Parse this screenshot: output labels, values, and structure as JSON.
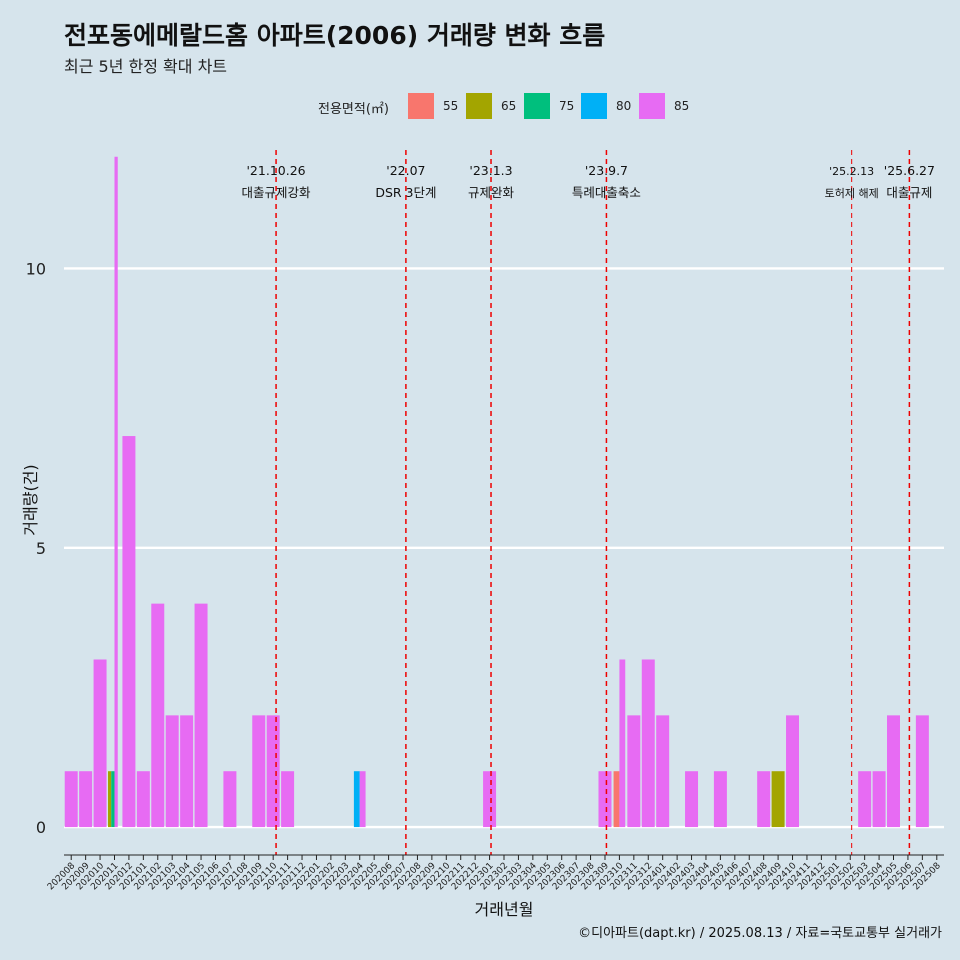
{
  "title": "전포동에메랄드홈 아파트(2006) 거래량 변화 흐름",
  "subtitle": "최근 5년 한정 확대 차트",
  "caption": "©디아파트(dapt.kr) / 2025.08.13 / 자료=국토교통부 실거래가",
  "legend": {
    "title": "전용면적(㎡)",
    "items": [
      {
        "label": "55",
        "color": "#F8766D"
      },
      {
        "label": "65",
        "color": "#A3A500"
      },
      {
        "label": "75",
        "color": "#00BF7D"
      },
      {
        "label": "80",
        "color": "#00B0F6"
      },
      {
        "label": "85",
        "color": "#E76BF3"
      }
    ]
  },
  "chart_data": {
    "type": "bar",
    "stacked": true,
    "xlabel": "거래년월",
    "ylabel": "거래량(건)",
    "ylim": [
      -0.5,
      12.3
    ],
    "yticks": [
      0,
      5,
      10
    ],
    "categories": [
      "202008",
      "202009",
      "202010",
      "202011",
      "202012",
      "202101",
      "202102",
      "202103",
      "202104",
      "202105",
      "202106",
      "202107",
      "202108",
      "202109",
      "202110",
      "202111",
      "202112",
      "202201",
      "202202",
      "202203",
      "202204",
      "202205",
      "202206",
      "202207",
      "202208",
      "202209",
      "202210",
      "202211",
      "202212",
      "202301",
      "202302",
      "202303",
      "202304",
      "202305",
      "202306",
      "202307",
      "202308",
      "202309",
      "202310",
      "202311",
      "202312",
      "202401",
      "202402",
      "202403",
      "202404",
      "202405",
      "202406",
      "202407",
      "202408",
      "202409",
      "202410",
      "202411",
      "202412",
      "202501",
      "202502",
      "202503",
      "202504",
      "202505",
      "202506",
      "202507",
      "202508"
    ],
    "bars": [
      {
        "x": 0,
        "segments": [
          {
            "size": "85",
            "value": 1
          }
        ]
      },
      {
        "x": 1,
        "segments": [
          {
            "size": "85",
            "value": 1
          }
        ]
      },
      {
        "x": 2,
        "segments": [
          {
            "size": "85",
            "value": 3
          }
        ]
      },
      {
        "x": 3,
        "width": 0.25,
        "offset": -0.375,
        "segments": [
          {
            "size": "65",
            "value": 1
          }
        ]
      },
      {
        "x": 3,
        "width": 0.25,
        "offset": -0.125,
        "segments": [
          {
            "size": "75",
            "value": 1
          }
        ]
      },
      {
        "x": 3,
        "width": 0.25,
        "offset": 0.125,
        "segments": [
          {
            "size": "85",
            "value": 12
          }
        ]
      },
      {
        "x": 4,
        "segments": [
          {
            "size": "85",
            "value": 7
          }
        ]
      },
      {
        "x": 5,
        "segments": [
          {
            "size": "85",
            "value": 1
          }
        ]
      },
      {
        "x": 6,
        "segments": [
          {
            "size": "85",
            "value": 4
          }
        ]
      },
      {
        "x": 7,
        "segments": [
          {
            "size": "85",
            "value": 2
          }
        ]
      },
      {
        "x": 8,
        "segments": [
          {
            "size": "85",
            "value": 2
          }
        ]
      },
      {
        "x": 9,
        "segments": [
          {
            "size": "85",
            "value": 4
          }
        ]
      },
      {
        "x": 11,
        "segments": [
          {
            "size": "85",
            "value": 1
          }
        ]
      },
      {
        "x": 13,
        "segments": [
          {
            "size": "85",
            "value": 2
          }
        ]
      },
      {
        "x": 14,
        "segments": [
          {
            "size": "85",
            "value": 2
          }
        ]
      },
      {
        "x": 15,
        "segments": [
          {
            "size": "85",
            "value": 1
          }
        ]
      },
      {
        "x": 20,
        "width": 0.45,
        "offset": -0.225,
        "segments": [
          {
            "size": "80",
            "value": 1
          }
        ]
      },
      {
        "x": 20,
        "width": 0.45,
        "offset": 0.225,
        "segments": [
          {
            "size": "85",
            "value": 1
          }
        ]
      },
      {
        "x": 29,
        "segments": [
          {
            "size": "85",
            "value": 1
          }
        ]
      },
      {
        "x": 37,
        "segments": [
          {
            "size": "85",
            "value": 1
          }
        ]
      },
      {
        "x": 38,
        "width": 0.45,
        "offset": -0.225,
        "segments": [
          {
            "size": "55",
            "value": 1
          }
        ]
      },
      {
        "x": 38,
        "width": 0.45,
        "offset": 0.225,
        "segments": [
          {
            "size": "85",
            "value": 3
          }
        ]
      },
      {
        "x": 39,
        "segments": [
          {
            "size": "85",
            "value": 2
          }
        ]
      },
      {
        "x": 40,
        "segments": [
          {
            "size": "85",
            "value": 3
          }
        ]
      },
      {
        "x": 41,
        "segments": [
          {
            "size": "85",
            "value": 2
          }
        ]
      },
      {
        "x": 43,
        "segments": [
          {
            "size": "85",
            "value": 1
          }
        ]
      },
      {
        "x": 45,
        "segments": [
          {
            "size": "85",
            "value": 1
          }
        ]
      },
      {
        "x": 48,
        "segments": [
          {
            "size": "85",
            "value": 1
          }
        ]
      },
      {
        "x": 49,
        "segments": [
          {
            "size": "65",
            "value": 1
          }
        ]
      },
      {
        "x": 50,
        "segments": [
          {
            "size": "85",
            "value": 2
          }
        ]
      },
      {
        "x": 55,
        "segments": [
          {
            "size": "85",
            "value": 1
          }
        ]
      },
      {
        "x": 56,
        "segments": [
          {
            "size": "85",
            "value": 1
          }
        ]
      },
      {
        "x": 57,
        "segments": [
          {
            "size": "85",
            "value": 2
          }
        ]
      },
      {
        "x": 59,
        "segments": [
          {
            "size": "85",
            "value": 2
          }
        ]
      }
    ],
    "events": [
      {
        "x": 14.2,
        "date": "'21.10.26",
        "label": "대출규제강화",
        "small": false
      },
      {
        "x": 23.2,
        "date": "'22.07",
        "label": "DSR 3단계",
        "small": false
      },
      {
        "x": 29.1,
        "date": "'23.1.3",
        "label": "규제완화",
        "small": false
      },
      {
        "x": 37.1,
        "date": "'23.9.7",
        "label": "특례대출축소",
        "small": false
      },
      {
        "x": 54.1,
        "date": "'25.2.13",
        "label": "토허제 해제",
        "small": true
      },
      {
        "x": 58.1,
        "date": "'25.6.27",
        "label": "대출규제",
        "small": false
      }
    ]
  }
}
